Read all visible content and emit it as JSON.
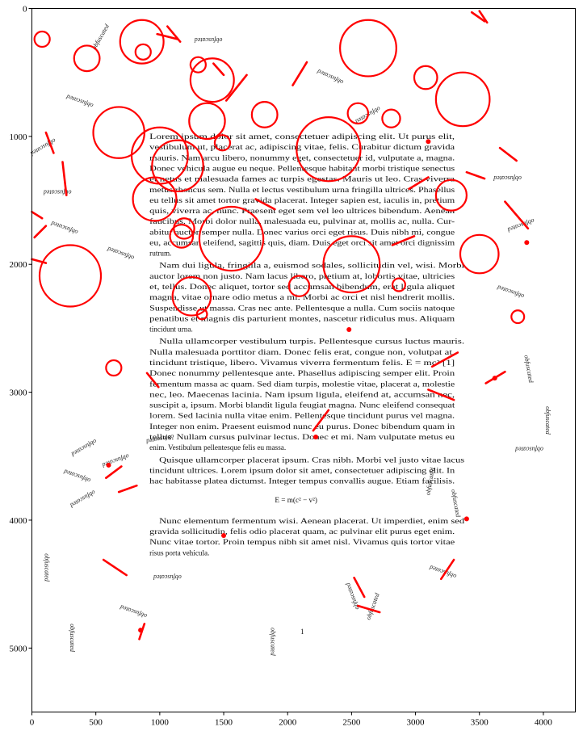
{
  "chart_data": {
    "type": "scatter",
    "title": "",
    "xlabel": "",
    "ylabel": "",
    "xlim": [
      0,
      4250
    ],
    "ylim": [
      5500,
      0
    ],
    "x_ticks": [
      "0",
      "500",
      "1000",
      "1500",
      "2000",
      "2500",
      "3000",
      "3500",
      "4000"
    ],
    "y_ticks": [
      "0",
      "1000",
      "2000",
      "3000",
      "4000",
      "5000"
    ],
    "grid": false,
    "legend": "none",
    "colors": {
      "overlay": "#ff0000",
      "axis": "#000000"
    },
    "document_lines": [
      "Lorem ipsum dolor sit amet, consectetuer adipiscing elit. Ut purus elit,",
      "vestibulum ut, placerat ac, adipiscing vitae, felis. Curabitur dictum gravida",
      "mauris. Nam arcu libero, nonummy eget, consectetuer id, vulputate a, magna.",
      "Donec vehicula augue eu neque. Pellentesque habitant morbi tristique senectus",
      "et netus et malesuada fames ac turpis egestas. Mauris ut leo. Cras viverra",
      "metus rhoncus sem. Nulla et lectus vestibulum urna fringilla ultrices. Phasellus",
      "eu tellus sit amet tortor gravida placerat. Integer sapien est, iaculis in, pretium",
      "quis, viverra ac, nunc. Praesent eget sem vel leo ultrices bibendum. Aenean",
      "faucibus. Morbi dolor nulla, malesuada eu, pulvinar at, mollis ac, nulla. Cur-",
      "abitur auctor semper nulla. Donec varius orci eget risus. Duis nibh mi, congue",
      "eu, accumsan eleifend, sagittis quis, diam. Duis eget orci sit amet orci dignissim",
      "rutrum.",
      "Nam dui ligula, fringilla a, euismod sodales, sollicitudin vel, wisi. Morbi",
      "auctor lorem non justo. Nam lacus libero, pretium at, lobortis vitae, ultricies",
      "et, tellus. Donec aliquet, tortor sed accumsan bibendum, erat ligula aliquet",
      "magna, vitae ornare odio metus a mi. Morbi ac orci et nisl hendrerit mollis.",
      "Suspendisse ut massa. Cras nec ante. Pellentesque a nulla. Cum sociis natoque",
      "penatibus et magnis dis parturient montes, nascetur ridiculus mus. Aliquam",
      "tincidunt urna.",
      "Nulla ullamcorper vestibulum turpis. Pellentesque cursus luctus mauris.",
      "Nulla malesuada porttitor diam. Donec felis erat, congue non, volutpat at,",
      "tincidunt tristique, libero. Vivamus viverra fermentum felis. E = mc² [1]",
      "Donec nonummy pellentesque ante. Phasellus adipiscing semper elit. Proin",
      "fermentum massa ac quam. Sed diam turpis, molestie vitae, placerat a, molestie",
      "nec, leo. Maecenas lacinia. Nam ipsum ligula, eleifend at, accumsan nec,",
      "suscipit a, ipsum. Morbi blandit ligula feugiat magna. Nunc eleifend consequat",
      "lorem. Sed lacinia nulla vitae enim. Pellentesque tincidunt purus vel magna.",
      "Integer non enim. Praesent euismod nunc eu purus. Donec bibendum quam in",
      "tellus. Nullam cursus pulvinar lectus. Donec et mi. Nam vulputate metus eu",
      "enim. Vestibulum pellentesque felis eu massa.",
      "Quisque ullamcorper placerat ipsum. Cras nibh. Morbi vel justo vitae lacus",
      "tincidunt ultrices. Lorem ipsum dolor sit amet, consectetuer adipiscing elit. In",
      "hac habitasse platea dictumst. Integer tempus convallis augue. Etiam facilisis.",
      "E = m(c² − v²)",
      "Nunc elementum fermentum wisi. Aenean placerat. Ut imperdiet, enim sed",
      "gravida sollicitudin, felis odio placerat quam, ac pulvinar elit purus eget enim.",
      "Nunc vitae tortor. Proin tempus nibh sit amet nisl. Vivamus quis tortor vitae",
      "risus porta vehicula."
    ],
    "page_number": "1",
    "scattered_word": "obfuscated",
    "circles": [
      {
        "x": 80,
        "y": 240,
        "r": 60
      },
      {
        "x": 430,
        "y": 390,
        "r": 100
      },
      {
        "x": 860,
        "y": 260,
        "r": 170
      },
      {
        "x": 870,
        "y": 340,
        "r": 60
      },
      {
        "x": 680,
        "y": 970,
        "r": 200
      },
      {
        "x": 1000,
        "y": 1150,
        "r": 220
      },
      {
        "x": 1140,
        "y": 1230,
        "r": 200
      },
      {
        "x": 1300,
        "y": 440,
        "r": 60
      },
      {
        "x": 1410,
        "y": 560,
        "r": 170
      },
      {
        "x": 1370,
        "y": 880,
        "r": 140
      },
      {
        "x": 1490,
        "y": 1050,
        "r": 60
      },
      {
        "x": 1820,
        "y": 830,
        "r": 100
      },
      {
        "x": 2630,
        "y": 310,
        "r": 220
      },
      {
        "x": 2550,
        "y": 820,
        "r": 80
      },
      {
        "x": 2320,
        "y": 1100,
        "r": 250
      },
      {
        "x": 2810,
        "y": 860,
        "r": 70
      },
      {
        "x": 3080,
        "y": 540,
        "r": 90
      },
      {
        "x": 3370,
        "y": 710,
        "r": 210
      },
      {
        "x": 960,
        "y": 1490,
        "r": 170
      },
      {
        "x": 1190,
        "y": 1720,
        "r": 80
      },
      {
        "x": 1560,
        "y": 1800,
        "r": 250
      },
      {
        "x": 3280,
        "y": 1460,
        "r": 120
      },
      {
        "x": 3500,
        "y": 1920,
        "r": 150
      },
      {
        "x": 300,
        "y": 2090,
        "r": 240
      },
      {
        "x": 1250,
        "y": 2250,
        "r": 150
      },
      {
        "x": 1330,
        "y": 2390,
        "r": 40
      },
      {
        "x": 2500,
        "y": 2000,
        "r": 220
      },
      {
        "x": 2090,
        "y": 2170,
        "r": 80
      },
      {
        "x": 2870,
        "y": 2160,
        "r": 50
      },
      {
        "x": 3800,
        "y": 2410,
        "r": 50
      },
      {
        "x": 640,
        "y": 2810,
        "r": 60
      },
      {
        "x": 1170,
        "y": 1780,
        "r": 90
      }
    ],
    "strokes": [
      {
        "x1": 1060,
        "y1": 140,
        "x2": 1160,
        "y2": 260
      },
      {
        "x1": 980,
        "y1": 200,
        "x2": 1140,
        "y2": 240
      },
      {
        "x1": 3440,
        "y1": 30,
        "x2": 3540,
        "y2": 100
      },
      {
        "x1": 3500,
        "y1": 20,
        "x2": 3560,
        "y2": 110
      },
      {
        "x1": 2040,
        "y1": 600,
        "x2": 2150,
        "y2": 420
      },
      {
        "x1": 1500,
        "y1": 520,
        "x2": 1420,
        "y2": 430
      },
      {
        "x1": 1520,
        "y1": 720,
        "x2": 1680,
        "y2": 520
      },
      {
        "x1": 110,
        "y1": 970,
        "x2": 170,
        "y2": 1130
      },
      {
        "x1": 240,
        "y1": 1200,
        "x2": 270,
        "y2": 1460
      },
      {
        "x1": 3400,
        "y1": 1280,
        "x2": 3540,
        "y2": 1330
      },
      {
        "x1": 3790,
        "y1": 1190,
        "x2": 3660,
        "y2": 1090
      },
      {
        "x1": 3700,
        "y1": 1510,
        "x2": 3880,
        "y2": 1720
      },
      {
        "x1": 0,
        "y1": 1590,
        "x2": 80,
        "y2": 1640
      },
      {
        "x1": 20,
        "y1": 1790,
        "x2": 110,
        "y2": 1700
      },
      {
        "x1": 0,
        "y1": 1960,
        "x2": 110,
        "y2": 1990
      },
      {
        "x1": 1750,
        "y1": 1490,
        "x2": 1900,
        "y2": 1570
      },
      {
        "x1": 2950,
        "y1": 1410,
        "x2": 3100,
        "y2": 1320
      },
      {
        "x1": 2820,
        "y1": 1850,
        "x2": 2990,
        "y2": 1780
      },
      {
        "x1": 900,
        "y1": 2850,
        "x2": 990,
        "y2": 2960
      },
      {
        "x1": 3130,
        "y1": 2800,
        "x2": 3330,
        "y2": 2690
      },
      {
        "x1": 3550,
        "y1": 2930,
        "x2": 3700,
        "y2": 2840
      },
      {
        "x1": 3100,
        "y1": 2980,
        "x2": 3300,
        "y2": 3060
      },
      {
        "x1": 2200,
        "y1": 3300,
        "x2": 2320,
        "y2": 3140
      },
      {
        "x1": 580,
        "y1": 3670,
        "x2": 700,
        "y2": 3580
      },
      {
        "x1": 680,
        "y1": 3780,
        "x2": 820,
        "y2": 3730
      },
      {
        "x1": 560,
        "y1": 4310,
        "x2": 740,
        "y2": 4430
      },
      {
        "x1": 840,
        "y1": 4930,
        "x2": 880,
        "y2": 4810
      },
      {
        "x1": 3300,
        "y1": 4310,
        "x2": 3200,
        "y2": 4460
      },
      {
        "x1": 2520,
        "y1": 4450,
        "x2": 2600,
        "y2": 4600
      },
      {
        "x1": 2550,
        "y1": 4670,
        "x2": 2720,
        "y2": 4720
      }
    ],
    "markers": [
      {
        "x": 3870,
        "y": 1830
      },
      {
        "x": 3100,
        "y": 1040
      },
      {
        "x": 2480,
        "y": 2510
      },
      {
        "x": 3620,
        "y": 2890
      },
      {
        "x": 600,
        "y": 3570
      },
      {
        "x": 2220,
        "y": 3350
      },
      {
        "x": 3400,
        "y": 3990
      },
      {
        "x": 1500,
        "y": 4120
      },
      {
        "x": 850,
        "y": 4860
      }
    ],
    "overlay_words": [
      {
        "x": 1380,
        "y": 230,
        "rot": 180
      },
      {
        "x": 380,
        "y": 710,
        "rot": 200
      },
      {
        "x": 80,
        "y": 1070,
        "rot": 150
      },
      {
        "x": 200,
        "y": 1420,
        "rot": 180
      },
      {
        "x": 260,
        "y": 1700,
        "rot": 200
      },
      {
        "x": 2340,
        "y": 520,
        "rot": 205
      },
      {
        "x": 2620,
        "y": 820,
        "rot": 150
      },
      {
        "x": 3720,
        "y": 1310,
        "rot": 180
      },
      {
        "x": 3820,
        "y": 1680,
        "rot": 160
      },
      {
        "x": 700,
        "y": 1900,
        "rot": 200
      },
      {
        "x": 3750,
        "y": 2200,
        "rot": 200
      },
      {
        "x": 1000,
        "y": 3350,
        "rot": 170
      },
      {
        "x": 400,
        "y": 3420,
        "rot": 150
      },
      {
        "x": 650,
        "y": 3520,
        "rot": 160
      },
      {
        "x": 360,
        "y": 3640,
        "rot": 200
      },
      {
        "x": 390,
        "y": 3820,
        "rot": 150
      },
      {
        "x": 3300,
        "y": 3870,
        "rot": 80
      },
      {
        "x": 3890,
        "y": 3430,
        "rot": 180
      },
      {
        "x": 4020,
        "y": 3220,
        "rot": 90
      },
      {
        "x": 1060,
        "y": 4430,
        "rot": 180
      },
      {
        "x": 2520,
        "y": 4590,
        "rot": 250
      },
      {
        "x": 2680,
        "y": 4680,
        "rot": 290
      },
      {
        "x": 800,
        "y": 4700,
        "rot": 200
      },
      {
        "x": 1870,
        "y": 4950,
        "rot": 90
      },
      {
        "x": 300,
        "y": 4920,
        "rot": 90
      },
      {
        "x": 100,
        "y": 4370,
        "rot": 90
      },
      {
        "x": 3220,
        "y": 4390,
        "rot": 200
      },
      {
        "x": 550,
        "y": 230,
        "rot": 300
      },
      {
        "x": 3130,
        "y": 3700,
        "rot": 280
      },
      {
        "x": 3870,
        "y": 2820,
        "rot": 80
      }
    ]
  }
}
